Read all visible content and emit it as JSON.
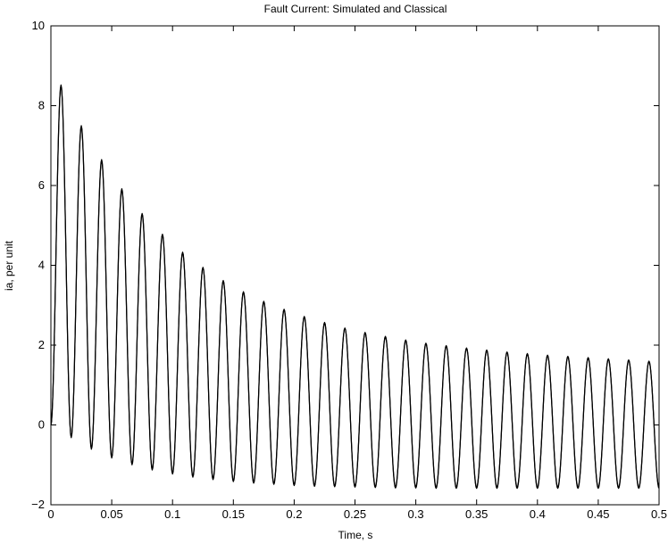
{
  "chart_data": {
    "type": "line",
    "title": "Fault Current: Simulated and Classical",
    "xlabel": "Time, s",
    "ylabel": "ia, per unit",
    "xlim": [
      0,
      0.5
    ],
    "ylim": [
      -2,
      10
    ],
    "x_ticks": [
      0,
      0.05,
      0.1,
      0.15,
      0.2,
      0.25,
      0.3,
      0.35,
      0.4,
      0.45,
      0.5
    ],
    "x_tick_labels": [
      "0",
      "0.05",
      "0.1",
      "0.15",
      "0.2",
      "0.25",
      "0.3",
      "0.35",
      "0.4",
      "0.45",
      "0.5"
    ],
    "y_ticks": [
      -2,
      0,
      2,
      4,
      6,
      8,
      10
    ],
    "y_tick_labels": [
      "−2",
      "0",
      "2",
      "4",
      "6",
      "8",
      "10"
    ],
    "grid": false,
    "line_color": "#000000",
    "series": [
      {
        "peaks": [
          [
            0.0083,
            8.52
          ],
          [
            0.025,
            7.5
          ],
          [
            0.0417,
            6.65
          ],
          [
            0.0583,
            5.92
          ],
          [
            0.075,
            5.3
          ],
          [
            0.0917,
            4.78
          ],
          [
            0.1083,
            4.33
          ],
          [
            0.125,
            3.95
          ],
          [
            0.1417,
            3.62
          ],
          [
            0.1583,
            3.34
          ],
          [
            0.175,
            3.1
          ],
          [
            0.1917,
            2.9
          ],
          [
            0.2083,
            2.72
          ],
          [
            0.225,
            2.57
          ],
          [
            0.2417,
            2.43
          ],
          [
            0.2583,
            2.32
          ],
          [
            0.275,
            2.22
          ],
          [
            0.2917,
            2.13
          ],
          [
            0.3083,
            2.05
          ],
          [
            0.325,
            1.99
          ],
          [
            0.3417,
            1.93
          ],
          [
            0.3583,
            1.88
          ],
          [
            0.375,
            1.83
          ],
          [
            0.3917,
            1.79
          ],
          [
            0.4083,
            1.75
          ],
          [
            0.425,
            1.72
          ],
          [
            0.4417,
            1.69
          ],
          [
            0.4583,
            1.66
          ],
          [
            0.475,
            1.63
          ],
          [
            0.4917,
            1.6
          ]
        ],
        "troughs": [
          [
            0.0167,
            -0.3
          ],
          [
            0.0333,
            -0.58
          ],
          [
            0.05,
            -0.8
          ],
          [
            0.0667,
            -0.97
          ],
          [
            0.0833,
            -1.1
          ],
          [
            0.1,
            -1.2
          ],
          [
            0.1167,
            -1.28
          ],
          [
            0.1333,
            -1.34
          ],
          [
            0.15,
            -1.39
          ],
          [
            0.1667,
            -1.43
          ],
          [
            0.1833,
            -1.46
          ],
          [
            0.2,
            -1.49
          ],
          [
            0.2167,
            -1.51
          ],
          [
            0.2333,
            -1.52
          ],
          [
            0.25,
            -1.53
          ],
          [
            0.2667,
            -1.54
          ],
          [
            0.2833,
            -1.55
          ],
          [
            0.3,
            -1.55
          ],
          [
            0.3167,
            -1.56
          ],
          [
            0.3333,
            -1.56
          ],
          [
            0.35,
            -1.56
          ],
          [
            0.3667,
            -1.56
          ],
          [
            0.3833,
            -1.56
          ],
          [
            0.4,
            -1.56
          ],
          [
            0.4167,
            -1.56
          ],
          [
            0.4333,
            -1.56
          ],
          [
            0.45,
            -1.56
          ],
          [
            0.4667,
            -1.56
          ],
          [
            0.4833,
            -1.56
          ],
          [
            0.5,
            -1.56
          ]
        ],
        "start": [
          0,
          0
        ]
      },
      {
        "peaks": [
          [
            0.0083,
            8.48
          ],
          [
            0.025,
            7.46
          ],
          [
            0.0417,
            6.61
          ],
          [
            0.0583,
            5.89
          ],
          [
            0.075,
            5.27
          ],
          [
            0.0917,
            4.76
          ],
          [
            0.1083,
            4.31
          ],
          [
            0.125,
            3.93
          ],
          [
            0.1417,
            3.6
          ],
          [
            0.1583,
            3.32
          ],
          [
            0.175,
            3.08
          ],
          [
            0.1917,
            2.88
          ],
          [
            0.2083,
            2.7
          ],
          [
            0.225,
            2.55
          ],
          [
            0.2417,
            2.42
          ],
          [
            0.2583,
            2.3
          ],
          [
            0.275,
            2.2
          ],
          [
            0.2917,
            2.11
          ],
          [
            0.3083,
            2.03
          ],
          [
            0.325,
            1.97
          ],
          [
            0.3417,
            1.91
          ],
          [
            0.3583,
            1.86
          ],
          [
            0.375,
            1.81
          ],
          [
            0.3917,
            1.77
          ],
          [
            0.4083,
            1.73
          ],
          [
            0.425,
            1.7
          ],
          [
            0.4417,
            1.67
          ],
          [
            0.4583,
            1.64
          ],
          [
            0.475,
            1.61
          ],
          [
            0.4917,
            1.58
          ]
        ],
        "troughs": [
          [
            0.0167,
            -0.32
          ],
          [
            0.0333,
            -0.61
          ],
          [
            0.05,
            -0.83
          ],
          [
            0.0667,
            -1.0
          ],
          [
            0.0833,
            -1.13
          ],
          [
            0.1,
            -1.23
          ],
          [
            0.1167,
            -1.31
          ],
          [
            0.1333,
            -1.37
          ],
          [
            0.15,
            -1.42
          ],
          [
            0.1667,
            -1.46
          ],
          [
            0.1833,
            -1.49
          ],
          [
            0.2,
            -1.52
          ],
          [
            0.2167,
            -1.54
          ],
          [
            0.2333,
            -1.55
          ],
          [
            0.25,
            -1.56
          ],
          [
            0.2667,
            -1.57
          ],
          [
            0.2833,
            -1.58
          ],
          [
            0.3,
            -1.58
          ],
          [
            0.3167,
            -1.59
          ],
          [
            0.3333,
            -1.59
          ],
          [
            0.35,
            -1.59
          ],
          [
            0.3667,
            -1.59
          ],
          [
            0.3833,
            -1.59
          ],
          [
            0.4,
            -1.59
          ],
          [
            0.4167,
            -1.59
          ],
          [
            0.4333,
            -1.59
          ],
          [
            0.45,
            -1.59
          ],
          [
            0.4667,
            -1.59
          ],
          [
            0.4833,
            -1.59
          ],
          [
            0.5,
            -1.59
          ]
        ],
        "start": [
          0,
          0
        ]
      }
    ]
  }
}
